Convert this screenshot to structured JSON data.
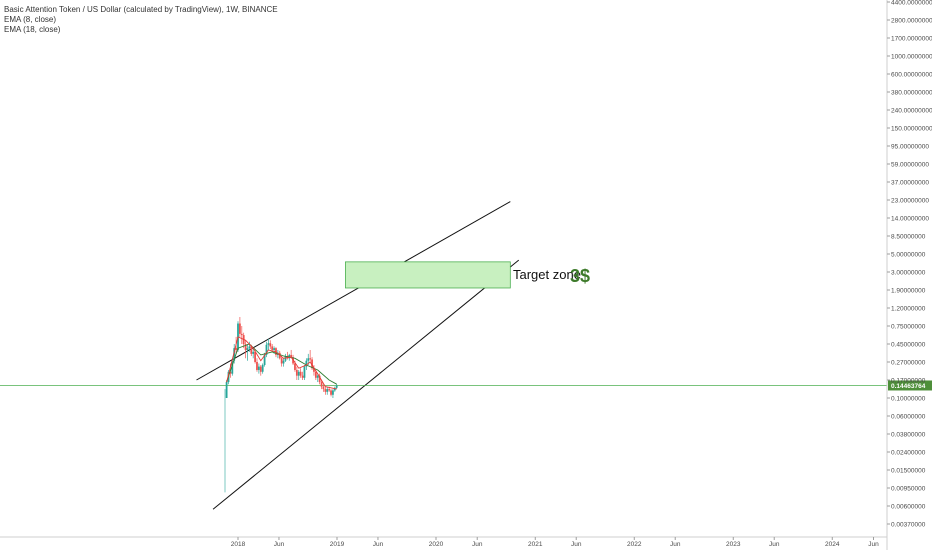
{
  "legend": {
    "title": "Basic Attention Token / US Dollar (calculated by TradingView), 1W, BINANCE",
    "ema1": "EMA (8, close)",
    "ema2": "EMA (18, close)"
  },
  "current_price_label": "0.14463764",
  "annotation": {
    "text": "Target zone",
    "value": "3$"
  },
  "colors": {
    "up": "#26a69a",
    "down": "#ef5350",
    "ema_fast": "#e53935",
    "ema_slow": "#2e7d32",
    "price_line": "#4caf50",
    "target_fill": "#c8f0c0",
    "target_stroke": "#4caf50",
    "trend": "#111111",
    "axis_text": "#4a4a4a"
  },
  "chart_data": {
    "type": "candlestick",
    "symbol": "BATUSDT",
    "interval": "1W",
    "exchange": "BINANCE",
    "y_scale": "log",
    "y_ticks": [
      "4400.00000000",
      "2800.00000000",
      "1700.00000000",
      "1000.00000000",
      "600.00000000",
      "380.00000000",
      "240.00000000",
      "150.00000000",
      "95.00000000",
      "59.00000000",
      "37.00000000",
      "23.00000000",
      "14.00000000",
      "8.50000000",
      "5.00000000",
      "3.00000000",
      "1.90000000",
      "1.20000000",
      "0.75000000",
      "0.45000000",
      "0.27000000",
      "0.17000000",
      "0.10000000",
      "0.06000000",
      "0.03800000",
      "0.02400000",
      "0.01500000",
      "0.00950000",
      "0.00600000",
      "0.00370000"
    ],
    "x_ticks": [
      "2018",
      "Jun",
      "2019",
      "Jun",
      "2020",
      "Jun",
      "2021",
      "Jun",
      "2022",
      "Jun",
      "2023",
      "Jun",
      "2024",
      "Jun"
    ],
    "last_price": 0.14463764,
    "target_zone": {
      "from": "2019-02",
      "to": "2020-10",
      "low": 2.0,
      "high": 4.0
    },
    "trend_lines": [
      {
        "from": {
          "date": "2017-08",
          "price": 0.17
        },
        "to": {
          "date": "2020-10",
          "price": 22.0
        }
      },
      {
        "from": {
          "date": "2017-10",
          "price": 0.0055
        },
        "to": {
          "date": "2020-11",
          "price": 4.2
        }
      }
    ],
    "candles": [
      {
        "date": "2017-11-20",
        "open": 0.1,
        "high": 0.17,
        "low": 0.1,
        "close": 0.16
      },
      {
        "date": "2017-11-27",
        "open": 0.16,
        "high": 0.22,
        "low": 0.15,
        "close": 0.21
      },
      {
        "date": "2017-12-04",
        "open": 0.21,
        "high": 0.26,
        "low": 0.18,
        "close": 0.2
      },
      {
        "date": "2017-12-11",
        "open": 0.2,
        "high": 0.3,
        "low": 0.19,
        "close": 0.28
      },
      {
        "date": "2017-12-18",
        "open": 0.28,
        "high": 0.45,
        "low": 0.26,
        "close": 0.4
      },
      {
        "date": "2017-12-25",
        "open": 0.4,
        "high": 0.55,
        "low": 0.34,
        "close": 0.38
      },
      {
        "date": "2018-01-01",
        "open": 0.38,
        "high": 0.85,
        "low": 0.36,
        "close": 0.8
      },
      {
        "date": "2018-01-08",
        "open": 0.8,
        "high": 0.95,
        "low": 0.55,
        "close": 0.6
      },
      {
        "date": "2018-01-15",
        "open": 0.6,
        "high": 0.75,
        "low": 0.45,
        "close": 0.58
      },
      {
        "date": "2018-01-22",
        "open": 0.58,
        "high": 0.62,
        "low": 0.4,
        "close": 0.45
      },
      {
        "date": "2018-01-29",
        "open": 0.45,
        "high": 0.5,
        "low": 0.3,
        "close": 0.38
      },
      {
        "date": "2018-02-05",
        "open": 0.38,
        "high": 0.45,
        "low": 0.28,
        "close": 0.4
      },
      {
        "date": "2018-02-12",
        "open": 0.4,
        "high": 0.48,
        "low": 0.36,
        "close": 0.42
      },
      {
        "date": "2018-02-19",
        "open": 0.42,
        "high": 0.44,
        "low": 0.32,
        "close": 0.34
      },
      {
        "date": "2018-02-26",
        "open": 0.34,
        "high": 0.4,
        "low": 0.3,
        "close": 0.36
      },
      {
        "date": "2018-03-05",
        "open": 0.36,
        "high": 0.38,
        "low": 0.26,
        "close": 0.27
      },
      {
        "date": "2018-03-12",
        "open": 0.27,
        "high": 0.3,
        "low": 0.21,
        "close": 0.22
      },
      {
        "date": "2018-03-19",
        "open": 0.22,
        "high": 0.26,
        "low": 0.2,
        "close": 0.24
      },
      {
        "date": "2018-03-26",
        "open": 0.24,
        "high": 0.25,
        "low": 0.19,
        "close": 0.21
      },
      {
        "date": "2018-04-02",
        "open": 0.21,
        "high": 0.26,
        "low": 0.2,
        "close": 0.25
      },
      {
        "date": "2018-04-09",
        "open": 0.25,
        "high": 0.35,
        "low": 0.24,
        "close": 0.33
      },
      {
        "date": "2018-04-16",
        "open": 0.33,
        "high": 0.48,
        "low": 0.31,
        "close": 0.44
      },
      {
        "date": "2018-04-23",
        "open": 0.44,
        "high": 0.52,
        "low": 0.38,
        "close": 0.46
      },
      {
        "date": "2018-04-30",
        "open": 0.46,
        "high": 0.5,
        "low": 0.39,
        "close": 0.42
      },
      {
        "date": "2018-05-07",
        "open": 0.42,
        "high": 0.45,
        "low": 0.36,
        "close": 0.38
      },
      {
        "date": "2018-05-14",
        "open": 0.38,
        "high": 0.42,
        "low": 0.34,
        "close": 0.4
      },
      {
        "date": "2018-05-21",
        "open": 0.4,
        "high": 0.41,
        "low": 0.31,
        "close": 0.33
      },
      {
        "date": "2018-05-28",
        "open": 0.33,
        "high": 0.38,
        "low": 0.3,
        "close": 0.35
      },
      {
        "date": "2018-06-04",
        "open": 0.35,
        "high": 0.37,
        "low": 0.29,
        "close": 0.3
      },
      {
        "date": "2018-06-11",
        "open": 0.3,
        "high": 0.32,
        "low": 0.24,
        "close": 0.26
      },
      {
        "date": "2018-06-18",
        "open": 0.26,
        "high": 0.3,
        "low": 0.24,
        "close": 0.28
      },
      {
        "date": "2018-06-25",
        "open": 0.28,
        "high": 0.34,
        "low": 0.27,
        "close": 0.32
      },
      {
        "date": "2018-07-02",
        "open": 0.32,
        "high": 0.36,
        "low": 0.29,
        "close": 0.3
      },
      {
        "date": "2018-07-09",
        "open": 0.3,
        "high": 0.34,
        "low": 0.28,
        "close": 0.33
      },
      {
        "date": "2018-07-16",
        "open": 0.33,
        "high": 0.38,
        "low": 0.3,
        "close": 0.31
      },
      {
        "date": "2018-07-23",
        "open": 0.31,
        "high": 0.33,
        "low": 0.25,
        "close": 0.26
      },
      {
        "date": "2018-07-30",
        "open": 0.26,
        "high": 0.28,
        "low": 0.21,
        "close": 0.22
      },
      {
        "date": "2018-08-06",
        "open": 0.22,
        "high": 0.24,
        "low": 0.17,
        "close": 0.19
      },
      {
        "date": "2018-08-13",
        "open": 0.19,
        "high": 0.22,
        "low": 0.17,
        "close": 0.21
      },
      {
        "date": "2018-08-20",
        "open": 0.21,
        "high": 0.23,
        "low": 0.18,
        "close": 0.19
      },
      {
        "date": "2018-08-27",
        "open": 0.19,
        "high": 0.21,
        "low": 0.17,
        "close": 0.18
      },
      {
        "date": "2018-09-03",
        "open": 0.18,
        "high": 0.25,
        "low": 0.17,
        "close": 0.24
      },
      {
        "date": "2018-09-10",
        "open": 0.24,
        "high": 0.3,
        "low": 0.22,
        "close": 0.28
      },
      {
        "date": "2018-09-17",
        "open": 0.28,
        "high": 0.34,
        "low": 0.25,
        "close": 0.3
      },
      {
        "date": "2018-09-24",
        "open": 0.3,
        "high": 0.38,
        "low": 0.27,
        "close": 0.29
      },
      {
        "date": "2018-10-01",
        "open": 0.29,
        "high": 0.31,
        "low": 0.22,
        "close": 0.23
      },
      {
        "date": "2018-10-08",
        "open": 0.23,
        "high": 0.25,
        "low": 0.19,
        "close": 0.21
      },
      {
        "date": "2018-10-15",
        "open": 0.21,
        "high": 0.22,
        "low": 0.17,
        "close": 0.18
      },
      {
        "date": "2018-10-22",
        "open": 0.18,
        "high": 0.2,
        "low": 0.16,
        "close": 0.19
      },
      {
        "date": "2018-10-29",
        "open": 0.19,
        "high": 0.2,
        "low": 0.15,
        "close": 0.16
      },
      {
        "date": "2018-11-05",
        "open": 0.16,
        "high": 0.17,
        "low": 0.13,
        "close": 0.14
      },
      {
        "date": "2018-11-12",
        "open": 0.14,
        "high": 0.15,
        "low": 0.12,
        "close": 0.13
      },
      {
        "date": "2018-11-19",
        "open": 0.13,
        "high": 0.14,
        "low": 0.11,
        "close": 0.12
      },
      {
        "date": "2018-11-26",
        "open": 0.12,
        "high": 0.14,
        "low": 0.11,
        "close": 0.13
      },
      {
        "date": "2018-12-03",
        "open": 0.13,
        "high": 0.14,
        "low": 0.12,
        "close": 0.125
      },
      {
        "date": "2018-12-10",
        "open": 0.125,
        "high": 0.13,
        "low": 0.105,
        "close": 0.11
      },
      {
        "date": "2018-12-17",
        "open": 0.11,
        "high": 0.13,
        "low": 0.1,
        "close": 0.125
      },
      {
        "date": "2018-12-24",
        "open": 0.125,
        "high": 0.14,
        "low": 0.12,
        "close": 0.135
      },
      {
        "date": "2018-12-31",
        "open": 0.135,
        "high": 0.15,
        "low": 0.13,
        "close": 0.145
      }
    ],
    "ema_fast": {
      "name": "EMA (8, close)",
      "values": [
        [
          0,
          0.16
        ],
        [
          6,
          0.55
        ],
        [
          10,
          0.5
        ],
        [
          14,
          0.4
        ],
        [
          18,
          0.28
        ],
        [
          22,
          0.38
        ],
        [
          26,
          0.36
        ],
        [
          30,
          0.3
        ],
        [
          34,
          0.31
        ],
        [
          38,
          0.23
        ],
        [
          42,
          0.25
        ],
        [
          44,
          0.27
        ],
        [
          48,
          0.2
        ],
        [
          52,
          0.14
        ],
        [
          58,
          0.13
        ]
      ]
    },
    "ema_slow": {
      "name": "EMA (18, close)",
      "values": [
        [
          0,
          0.16
        ],
        [
          6,
          0.4
        ],
        [
          12,
          0.45
        ],
        [
          18,
          0.33
        ],
        [
          24,
          0.36
        ],
        [
          30,
          0.32
        ],
        [
          36,
          0.3
        ],
        [
          42,
          0.25
        ],
        [
          48,
          0.22
        ],
        [
          54,
          0.17
        ],
        [
          58,
          0.15
        ]
      ]
    },
    "grid": false,
    "legend_position": "top-left"
  }
}
